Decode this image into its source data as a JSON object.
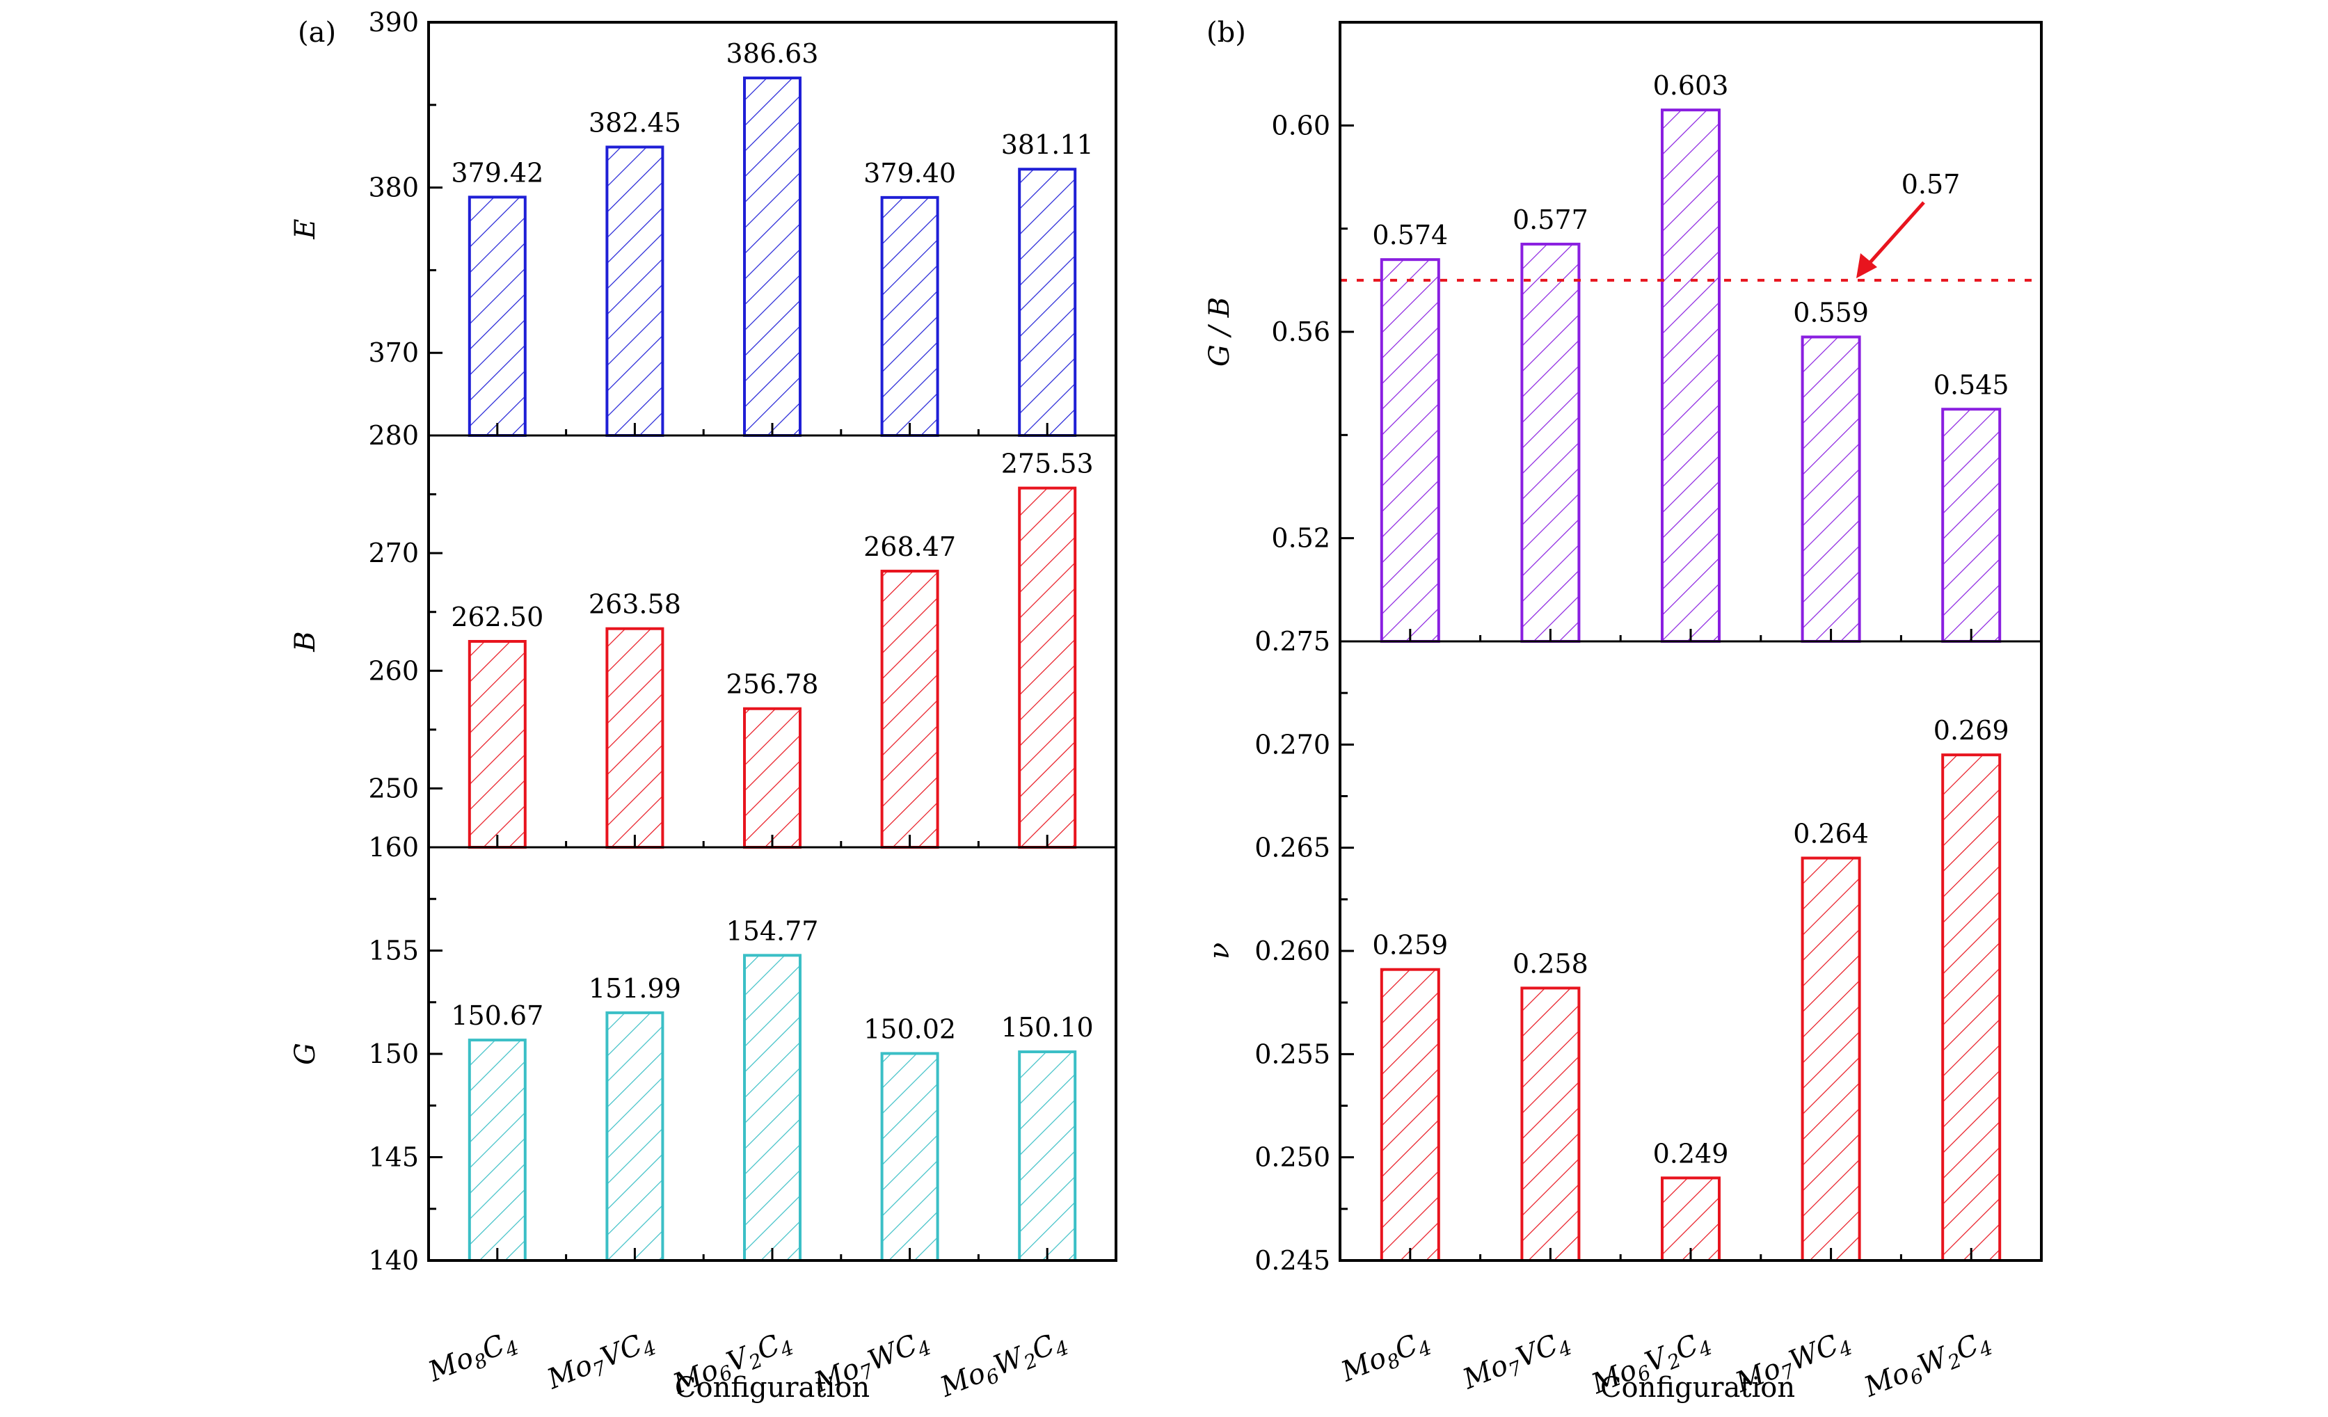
{
  "chart_data": [
    {
      "panel": "(a)",
      "type": "bar",
      "xlabel": "Configuration",
      "categories": [
        "Mo8C4",
        "Mo7VC4",
        "Mo6V2C4",
        "Mo7WC4",
        "Mo6W2C4"
      ],
      "category_labels": [
        [
          [
            "Mo",
            ""
          ],
          [
            "8",
            "sub"
          ],
          [
            "C",
            ""
          ],
          [
            "4",
            "sub"
          ]
        ],
        [
          [
            "Mo",
            ""
          ],
          [
            "7",
            "sub"
          ],
          [
            "VC",
            ""
          ],
          [
            "4",
            "sub"
          ]
        ],
        [
          [
            "Mo",
            ""
          ],
          [
            "6",
            "sub"
          ],
          [
            "V",
            ""
          ],
          [
            "2",
            "sub"
          ],
          [
            "C",
            ""
          ],
          [
            "4",
            "sub"
          ]
        ],
        [
          [
            "Mo",
            ""
          ],
          [
            "7",
            "sub"
          ],
          [
            "WC",
            ""
          ],
          [
            "4",
            "sub"
          ]
        ],
        [
          [
            "Mo",
            ""
          ],
          [
            "6",
            "sub"
          ],
          [
            "W",
            ""
          ],
          [
            "2",
            "sub"
          ],
          [
            "C",
            ""
          ],
          [
            "4",
            "sub"
          ]
        ]
      ],
      "subplots": [
        {
          "ylabel": "E",
          "ylim": [
            365,
            390
          ],
          "yticks": [
            370,
            380,
            390
          ],
          "ytick_labels": [
            "370",
            "380",
            "390"
          ],
          "minor_step": 5,
          "color": "#1f1fd6",
          "values": [
            379.42,
            382.45,
            386.63,
            379.4,
            381.11
          ],
          "value_labels": [
            "379.42",
            "382.45",
            "386.63",
            "379.40",
            "381.11"
          ],
          "bottom_label": "280"
        },
        {
          "ylabel": "B",
          "ylim": [
            245,
            280
          ],
          "yticks": [
            250,
            260,
            270
          ],
          "ytick_labels": [
            "250",
            "260",
            "270"
          ],
          "minor_step": 5,
          "color": "#e8141e",
          "values": [
            262.5,
            263.58,
            256.78,
            268.47,
            275.53
          ],
          "value_labels": [
            "262.50",
            "263.58",
            "256.78",
            "268.47",
            "275.53"
          ],
          "bottom_label": "160"
        },
        {
          "ylabel": "G",
          "ylim": [
            140,
            160
          ],
          "yticks": [
            140,
            145,
            150,
            155
          ],
          "ytick_labels": [
            "140",
            "145",
            "150",
            "155"
          ],
          "minor_step": 2.5,
          "color": "#3bbfc6",
          "values": [
            150.67,
            151.99,
            154.77,
            150.02,
            150.1
          ],
          "value_labels": [
            "150.67",
            "151.99",
            "154.77",
            "150.02",
            "150.10"
          ],
          "bottom_label": ""
        }
      ]
    },
    {
      "panel": "(b)",
      "type": "bar",
      "xlabel": "Configuration",
      "categories": [
        "Mo8C4",
        "Mo7VC4",
        "Mo6V2C4",
        "Mo7WC4",
        "Mo6W2C4"
      ],
      "category_labels": [
        [
          [
            "Mo",
            ""
          ],
          [
            "8",
            "sub"
          ],
          [
            "C",
            ""
          ],
          [
            "4",
            "sub"
          ]
        ],
        [
          [
            "Mo",
            ""
          ],
          [
            "7",
            "sub"
          ],
          [
            "VC",
            ""
          ],
          [
            "4",
            "sub"
          ]
        ],
        [
          [
            "Mo",
            ""
          ],
          [
            "6",
            "sub"
          ],
          [
            "V",
            ""
          ],
          [
            "2",
            "sub"
          ],
          [
            "C",
            ""
          ],
          [
            "4",
            "sub"
          ]
        ],
        [
          [
            "Mo",
            ""
          ],
          [
            "7",
            "sub"
          ],
          [
            "WC",
            ""
          ],
          [
            "4",
            "sub"
          ]
        ],
        [
          [
            "Mo",
            ""
          ],
          [
            "6",
            "sub"
          ],
          [
            "W",
            ""
          ],
          [
            "2",
            "sub"
          ],
          [
            "C",
            ""
          ],
          [
            "4",
            "sub"
          ]
        ]
      ],
      "subplots": [
        {
          "ylabel": "G / B",
          "ylim": [
            0.5,
            0.62
          ],
          "yticks": [
            0.52,
            0.56,
            0.6
          ],
          "ytick_labels": [
            "0.52",
            "0.56",
            "0.60"
          ],
          "minor_step": 0.02,
          "color": "#8a1fe0",
          "values": [
            0.574,
            0.577,
            0.603,
            0.559,
            0.545
          ],
          "value_labels": [
            "0.574",
            "0.577",
            "0.603",
            "0.559",
            "0.545"
          ],
          "bottom_label": "0.275",
          "reference_line": {
            "value": 0.57,
            "label": "0.57",
            "color": "#e8141e",
            "style": "dotted",
            "arrow": true
          }
        },
        {
          "ylabel": "ν",
          "ylim": [
            0.245,
            0.275
          ],
          "yticks": [
            0.245,
            0.25,
            0.255,
            0.26,
            0.265,
            0.27
          ],
          "ytick_labels": [
            "0.245",
            "0.250",
            "0.255",
            "0.260",
            "0.265",
            "0.270"
          ],
          "minor_step": 0.0025,
          "color": "#e8141e",
          "values": [
            0.2591,
            0.2582,
            0.249,
            0.2645,
            0.2695
          ],
          "value_labels": [
            "0.259",
            "0.258",
            "0.249",
            "0.264",
            "0.269"
          ],
          "bottom_label": ""
        }
      ]
    }
  ]
}
